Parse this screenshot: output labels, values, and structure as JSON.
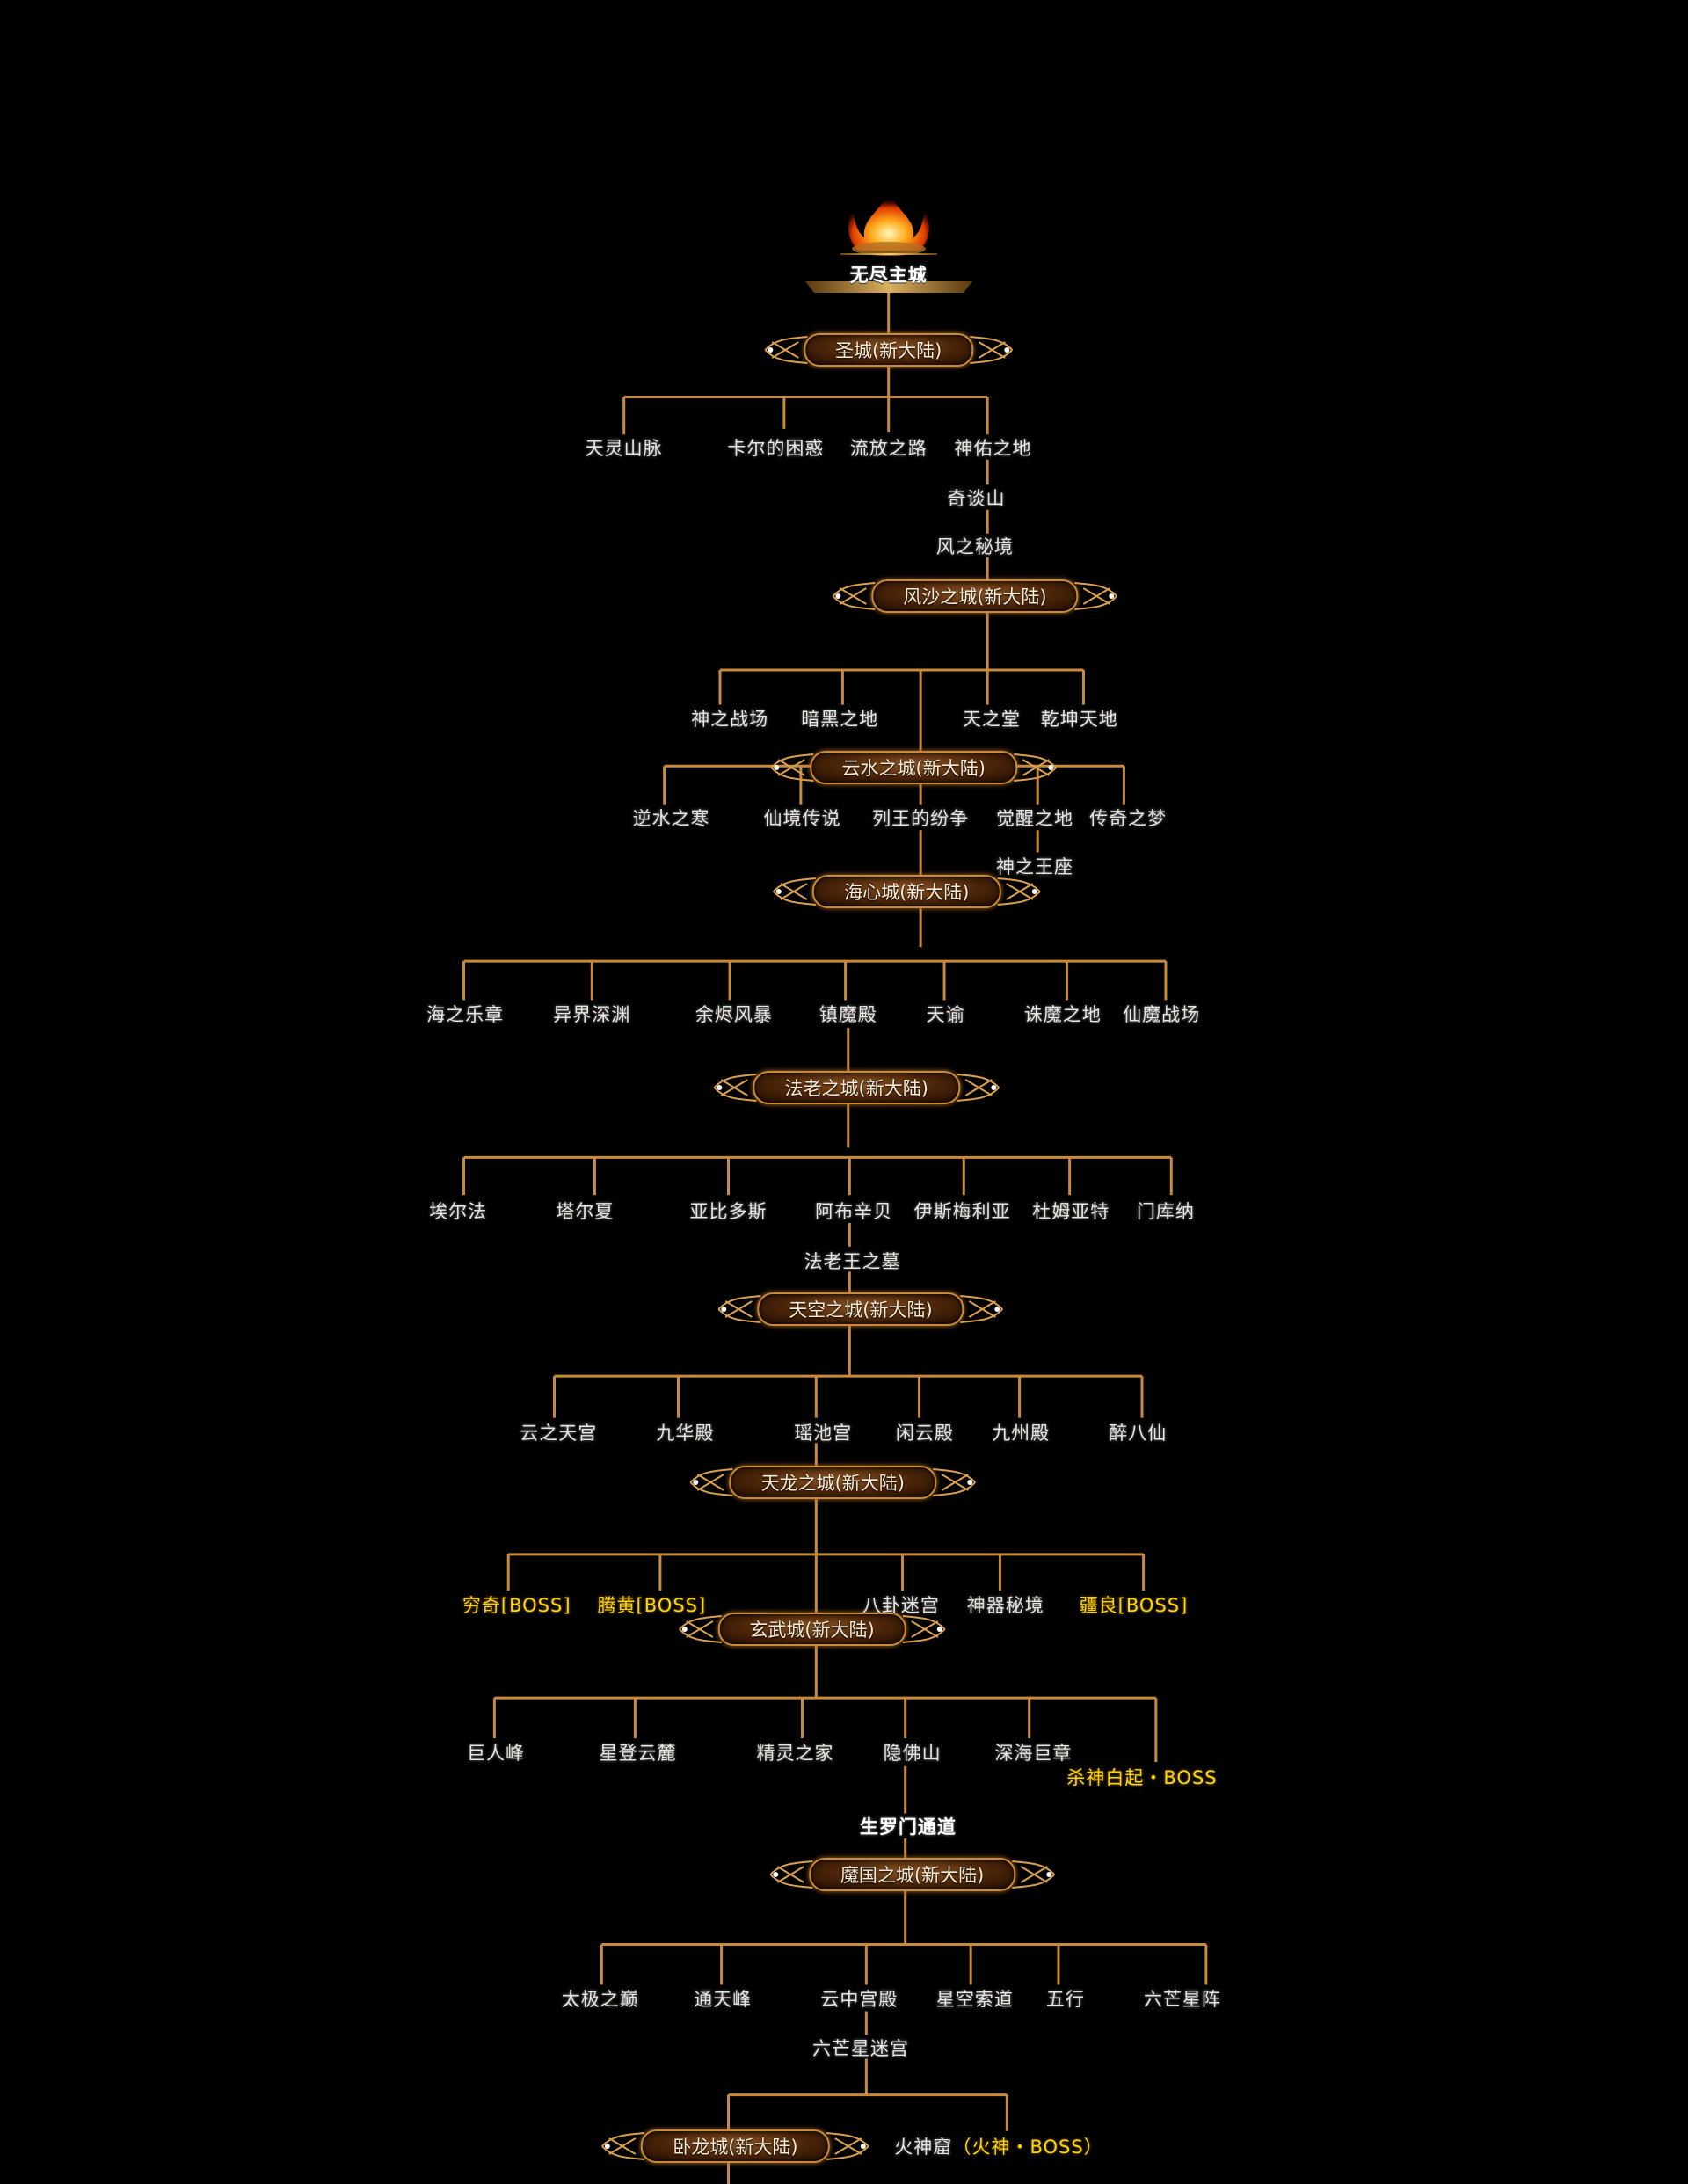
{
  "colors": {
    "line": "#c98a3a",
    "boss": "#ffd400",
    "text": "#e8e4e0"
  },
  "capital": "无尽主城",
  "cities": {
    "shengcheng": "圣城(新大陆)",
    "fengsha": "风沙之城(新大陆)",
    "yunshui": "云水之城(新大陆)",
    "haixin": "海心城(新大陆)",
    "falao": "法老之城(新大陆)",
    "tiankong": "天空之城(新大陆)",
    "tianlong": "天龙之城(新大陆)",
    "xuanwu": "玄武城(新大陆)",
    "moguo": "魔国之城(新大陆)",
    "wolong": "卧龙城(新大陆)"
  },
  "areas": {
    "shengcheng": [
      "天灵山脉",
      "卡尔的困惑",
      "流放之路",
      "神佑之地"
    ],
    "shengcheng_path": [
      "奇谈山",
      "风之秘境"
    ],
    "fengsha": [
      "神之战场",
      "暗黑之地",
      "天之堂",
      "乾坤天地"
    ],
    "yunshui": [
      "逆水之寒",
      "仙境传说",
      "列王的纷争",
      "觉醒之地",
      "传奇之梦"
    ],
    "yunshui_sub": "神之王座",
    "haixin": [
      "海之乐章",
      "异界深渊",
      "余烬风暴",
      "镇魔殿",
      "天谕",
      "诛魔之地",
      "仙魔战场"
    ],
    "falao": [
      "埃尔法",
      "塔尔夏",
      "亚比多斯",
      "阿布辛贝",
      "伊斯梅利亚",
      "杜姆亚特",
      "门库纳"
    ],
    "falao_path": "法老王之墓",
    "tiankong": [
      "云之天宫",
      "九华殿",
      "瑶池宫",
      "闲云殿",
      "九州殿",
      "醉八仙"
    ],
    "tianlong": [
      "穷奇[BOSS]",
      "腾黄[BOSS]",
      "八卦迷宫",
      "神器秘境",
      "疆良[BOSS]"
    ],
    "xuanwu": [
      "巨人峰",
      "星登云麓",
      "精灵之家",
      "隐佛山",
      "深海巨章",
      "杀神白起・BOSS"
    ],
    "xuanwu_path": "生罗门通道",
    "moguo": [
      "太极之巅",
      "通天峰",
      "云中宫殿",
      "星空索道",
      "五行",
      "六芒星阵"
    ],
    "moguo_path": "六芒星迷宫",
    "final_dungeon": "火神窟",
    "final_boss": "（火神・BOSS）"
  }
}
